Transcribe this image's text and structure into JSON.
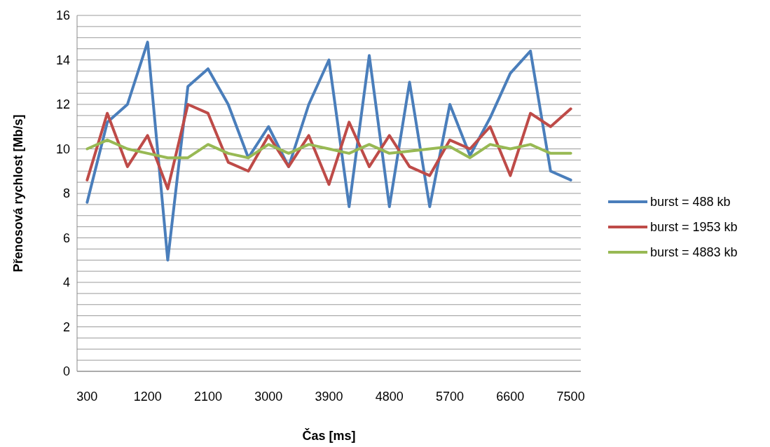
{
  "chart_data": {
    "type": "line",
    "xlabel": "Čas [ms]",
    "ylabel": "Přenosová rychlost [Mb/s]",
    "categories": [
      "300",
      null,
      null,
      "1200",
      null,
      null,
      "2100",
      null,
      null,
      "3000",
      null,
      null,
      "3900",
      null,
      null,
      "4800",
      null,
      null,
      "5700",
      null,
      null,
      "6600",
      null,
      null,
      "7500"
    ],
    "series": [
      {
        "name": "burst = 488 kb",
        "color": "#4a7ebb",
        "values": [
          7.6,
          11.2,
          12,
          14.8,
          5,
          12.8,
          13.6,
          12,
          9.6,
          11,
          9.2,
          12,
          14,
          7.4,
          14.2,
          7.4,
          13,
          7.4,
          12,
          9.7,
          11.4,
          13.4,
          14.4,
          9,
          8.6
        ]
      },
      {
        "name": "burst = 1953 kb",
        "color": "#be4b48",
        "values": [
          8.6,
          11.6,
          9.2,
          10.6,
          8.2,
          12,
          11.6,
          9.4,
          9,
          10.6,
          9.2,
          10.6,
          8.4,
          11.2,
          9.2,
          10.6,
          9.2,
          8.8,
          10.4,
          10,
          11,
          8.8,
          11.6,
          11,
          11.8
        ]
      },
      {
        "name": "burst = 4883 kb",
        "color": "#98b954",
        "values": [
          10,
          10.4,
          10,
          9.8,
          9.6,
          9.6,
          10.2,
          9.8,
          9.6,
          10.2,
          9.8,
          10.2,
          10,
          9.8,
          10.2,
          9.8,
          9.9,
          10,
          10.1,
          9.6,
          10.2,
          10,
          10.2,
          9.8,
          9.8
        ]
      }
    ],
    "ylim": [
      0,
      16
    ],
    "yticks": [
      0,
      {
        "value": 0.5,
        "label": null
      },
      {
        "value": 1,
        "label": null
      },
      {
        "value": 1.5,
        "label": null
      },
      2,
      {
        "value": 2.5,
        "label": null
      },
      {
        "value": 3,
        "label": null
      },
      {
        "value": 3.5,
        "label": null
      },
      4,
      {
        "value": 4.5,
        "label": null
      },
      {
        "value": 5,
        "label": null
      },
      {
        "value": 5.5,
        "label": null
      },
      6,
      {
        "value": 6.5,
        "label": null
      },
      {
        "value": 7,
        "label": null
      },
      {
        "value": 7.5,
        "label": null
      },
      8,
      {
        "value": 8.5,
        "label": null
      },
      {
        "value": 9,
        "label": null
      },
      {
        "value": 9.5,
        "label": null
      },
      10,
      {
        "value": 10.5,
        "label": null
      },
      {
        "value": 11,
        "label": null
      },
      {
        "value": 11.5,
        "label": null
      },
      12,
      {
        "value": 12.5,
        "label": null
      },
      {
        "value": 13,
        "label": null
      },
      {
        "value": 13.5,
        "label": null
      },
      14,
      {
        "value": 14.5,
        "label": null
      },
      {
        "value": 15,
        "label": null
      },
      {
        "value": 15.5,
        "label": null
      },
      16
    ],
    "grid": "y",
    "legend": "right",
    "marker": "none",
    "line_style": "solid"
  }
}
